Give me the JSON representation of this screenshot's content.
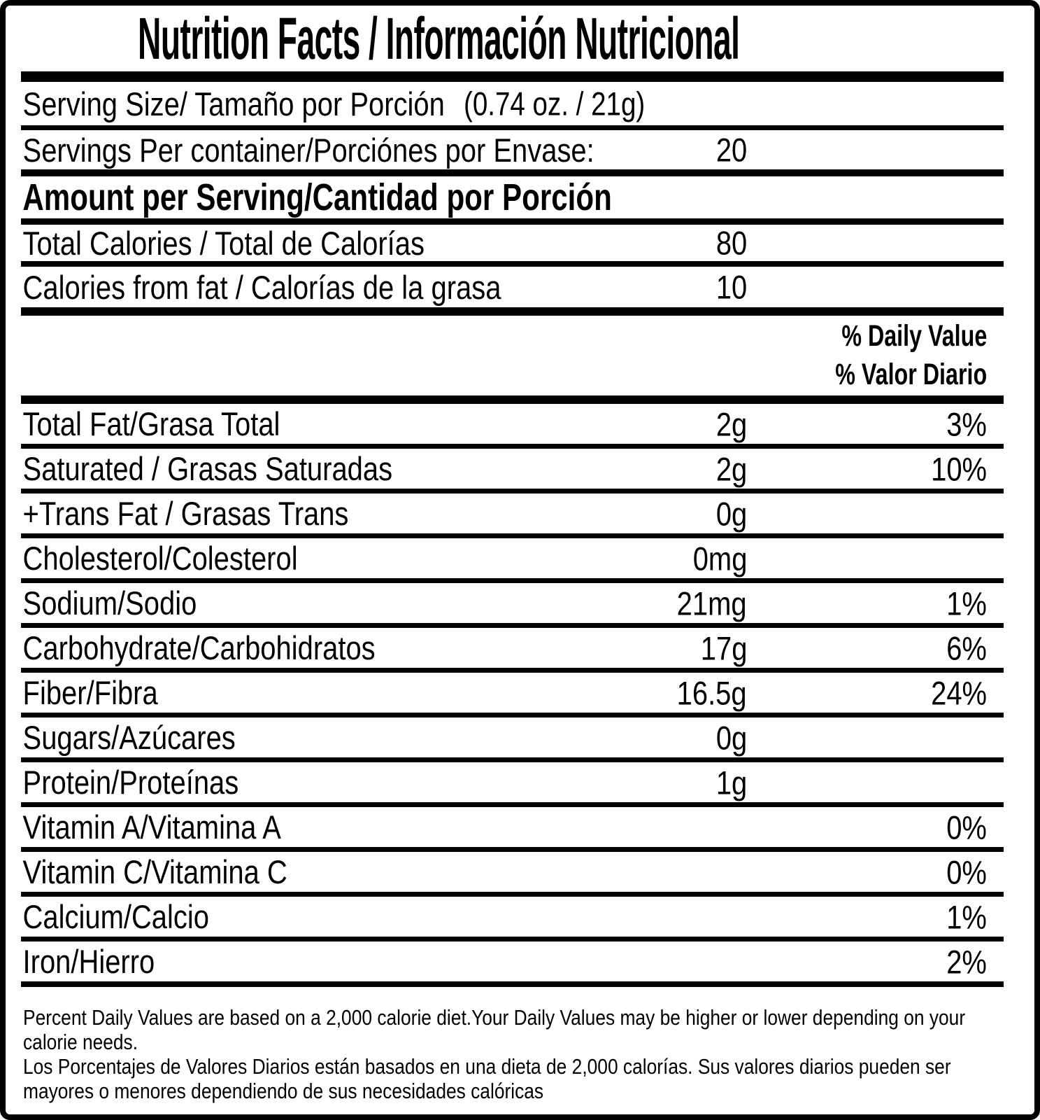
{
  "title": "Nutrition Facts / Información Nutricional",
  "serving_size": {
    "label": "Serving Size/ Tamaño por Porción",
    "value": "(0.74 oz. / 21g)"
  },
  "servings_per_container": {
    "label": "Servings Per container/Porciónes por Envase:",
    "value": "20"
  },
  "section_header": "Amount per Serving/Cantidad por Porción",
  "total_calories": {
    "label": "Total Calories / Total de Calorías",
    "value": "80"
  },
  "calories_from_fat": {
    "label": "Calories from fat / Calorías de la grasa",
    "value": "10"
  },
  "daily_value_header": {
    "en": "% Daily Value",
    "es": "% Valor Diario"
  },
  "nutrients": [
    {
      "label": "Total Fat/Grasa Total",
      "amount": "2g",
      "dv": "3%"
    },
    {
      "label": "Saturated / Grasas Saturadas",
      "amount": "2g",
      "dv": "10%"
    },
    {
      "label": "+Trans Fat / Grasas Trans",
      "amount": "0g",
      "dv": ""
    },
    {
      "label": "Cholesterol/Colesterol",
      "amount": "0mg",
      "dv": ""
    },
    {
      "label": "Sodium/Sodio",
      "amount": "21mg",
      "dv": "1%"
    },
    {
      "label": "Carbohydrate/Carbohidratos",
      "amount": "17g",
      "dv": "6%"
    },
    {
      "label": "Fiber/Fibra",
      "amount": "16.5g",
      "dv": "24%"
    },
    {
      "label": "Sugars/Azúcares",
      "amount": "0g",
      "dv": ""
    },
    {
      "label": "Protein/Proteínas",
      "amount": "1g",
      "dv": ""
    },
    {
      "label": "Vitamin A/Vitamina A",
      "amount": "",
      "dv": "0%"
    },
    {
      "label": "Vitamin C/Vitamina C",
      "amount": "",
      "dv": "0%"
    },
    {
      "label": "Calcium/Calcio",
      "amount": "",
      "dv": "1%"
    },
    {
      "label": "Iron/Hierro",
      "amount": "",
      "dv": "2%"
    }
  ],
  "footnote": {
    "lines": [
      "Percent Daily Values are based on a 2,000 calorie diet.Your Daily Values may be higher or lower depending on your",
      "calorie needs.",
      "Los Porcentajes de Valores Diarios están basados en una dieta de 2,000 calorías. Sus valores diarios pueden ser",
      "mayores o menores dependiendo de sus necesidades calóricas"
    ]
  },
  "colors": {
    "ink": "#000000",
    "paper": "#ffffff"
  }
}
